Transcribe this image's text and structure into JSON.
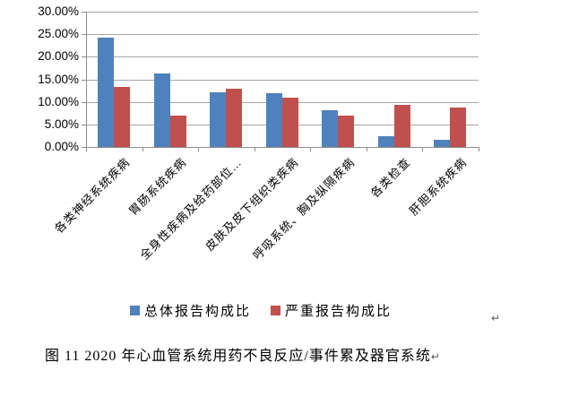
{
  "figure": {
    "caption": "图 11  2020 年心血管系统用药不良反应/事件累及器官系统",
    "paragraph_mark": "↵"
  },
  "chart_data": {
    "type": "bar",
    "title": "",
    "xlabel": "",
    "ylabel": "",
    "categories": [
      "各类神经系统疾病",
      "胃肠系统疾病",
      "全身性疾病及给药部位…",
      "皮肤及皮下组织类疾病",
      "呼吸系统、胸及纵隔疾病",
      "各类检查",
      "肝胆系统疾病"
    ],
    "series": [
      {
        "name": "总体报告构成比",
        "color": "#4f81bd",
        "values": [
          24.3,
          16.2,
          12.1,
          11.9,
          8.1,
          2.3,
          1.6
        ]
      },
      {
        "name": "严重报告构成比",
        "color": "#c0504d",
        "values": [
          13.4,
          7.0,
          12.9,
          11.0,
          7.0,
          9.4,
          8.8
        ]
      }
    ],
    "ylim": [
      0,
      30
    ],
    "ytick_step": 5,
    "ytick_labels": [
      "0.00%",
      "5.00%",
      "10.00%",
      "15.00%",
      "20.00%",
      "25.00%",
      "30.00%"
    ],
    "grid": true,
    "legend_position": "bottom",
    "axis_color": "#8c8c8c",
    "gridline_color": "#a6a6a6"
  }
}
